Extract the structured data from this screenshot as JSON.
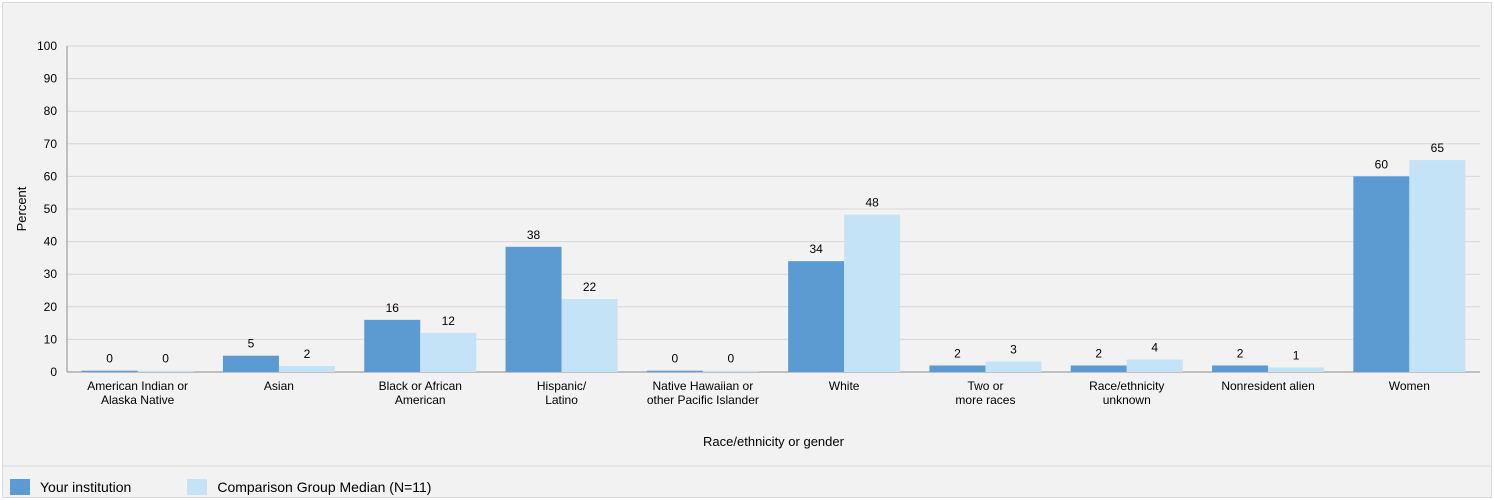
{
  "chart_data": {
    "type": "bar",
    "title": "",
    "xlabel": "Race/ethnicity or gender",
    "ylabel": "Percent",
    "ylim": [
      0,
      100
    ],
    "yticks": [
      0,
      10,
      20,
      30,
      40,
      50,
      60,
      70,
      80,
      90,
      100
    ],
    "grid": true,
    "legend_position": "bottom-left",
    "categories": [
      [
        "American Indian or",
        "Alaska Native"
      ],
      [
        "Asian"
      ],
      [
        "Black or African",
        "American"
      ],
      [
        "Hispanic/",
        "Latino"
      ],
      [
        "Native Hawaiian or",
        "other Pacific Islander"
      ],
      [
        "White"
      ],
      [
        "Two or",
        "more races"
      ],
      [
        "Race/ethnicity",
        "unknown"
      ],
      [
        "Nonresident alien"
      ],
      [
        "Women"
      ]
    ],
    "series": [
      {
        "name": "Your institution",
        "color": "#5b9bd1",
        "values": [
          0.4,
          5,
          16,
          38.4,
          0.4,
          34,
          2,
          2,
          2,
          60
        ],
        "labels": [
          "0",
          "5",
          "16",
          "38",
          "0",
          "34",
          "2",
          "2",
          "2",
          "60"
        ]
      },
      {
        "name": "Comparison Group Median (N=11)",
        "color": "#c5e3f6",
        "values": [
          0.4,
          1.8,
          12,
          22.4,
          0.4,
          48.3,
          3.2,
          3.8,
          1.4,
          65
        ],
        "labels": [
          "0",
          "2",
          "12",
          "22",
          "0",
          "48",
          "3",
          "4",
          "1",
          "65"
        ]
      }
    ]
  }
}
